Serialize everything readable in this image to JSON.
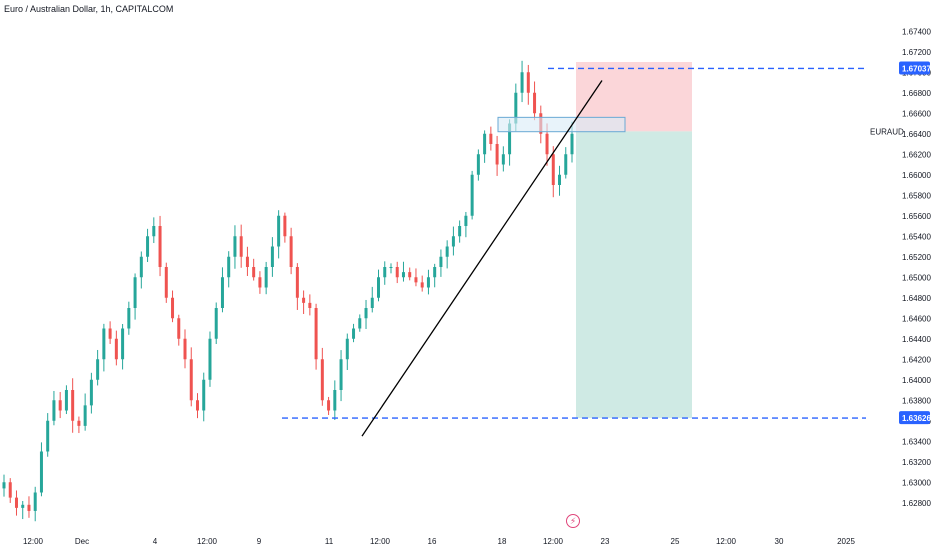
{
  "header": {
    "title": "Euro / Australian Dollar, 1h, CAPITALCOM"
  },
  "symbol": "EURAUD",
  "icons": {
    "logo": "tradingview-lightning-icon"
  },
  "colors": {
    "up": "#26a69a",
    "down": "#ef5350",
    "level": "#2962ff",
    "target_zone": "#cfeae4",
    "stop_zone": "#fbd6d9",
    "box_fill": "#d8ebf6",
    "box_stroke": "#6aa9d4",
    "trendline": "#000000"
  },
  "chart_data": {
    "type": "candlestick",
    "title": "Euro / Australian Dollar, 1h, CAPITALCOM",
    "y_axis": {
      "ylim": [
        1.627,
        1.675
      ],
      "ticks": [
        "1.67400",
        "1.67200",
        "1.67000",
        "1.66800",
        "1.66600",
        "1.66400",
        "1.66200",
        "1.66000",
        "1.65800",
        "1.65600",
        "1.65400",
        "1.65200",
        "1.65000",
        "1.64800",
        "1.64600",
        "1.64400",
        "1.64200",
        "1.64000",
        "1.63800",
        "1.63600",
        "1.63400",
        "1.63200",
        "1.63000",
        "1.62800"
      ],
      "side": "right"
    },
    "x_axis": {
      "ticks": [
        "12:00",
        "Dec",
        "4",
        "12:00",
        "9",
        "11",
        "12:00",
        "16",
        "18",
        "12:00",
        "23",
        "25",
        "12:00",
        "30",
        "2025"
      ]
    },
    "approx_closes": [
      1.63,
      1.6285,
      1.6275,
      1.6278,
      1.6272,
      1.629,
      1.633,
      1.636,
      1.638,
      1.637,
      1.639,
      1.636,
      1.6355,
      1.6375,
      1.64,
      1.642,
      1.645,
      1.644,
      1.642,
      1.645,
      1.647,
      1.65,
      1.652,
      1.654,
      1.655,
      1.651,
      1.648,
      1.646,
      1.644,
      1.642,
      1.638,
      1.637,
      1.64,
      1.644,
      1.647,
      1.65,
      1.652,
      1.654,
      1.652,
      1.651,
      1.65,
      1.649,
      1.651,
      1.653,
      1.656,
      1.654,
      1.651,
      1.648,
      1.6475,
      1.647,
      1.642,
      1.638,
      1.637,
      1.639,
      1.642,
      1.644,
      1.645,
      1.646,
      1.647,
      1.648,
      1.65,
      1.651,
      1.651,
      1.65,
      1.6505,
      1.65,
      1.6495,
      1.649,
      1.65,
      1.651,
      1.652,
      1.653,
      1.654,
      1.655,
      1.656,
      1.66,
      1.662,
      1.664,
      1.663,
      1.661,
      1.662,
      1.665,
      1.668,
      1.67,
      1.668,
      1.666,
      1.664,
      1.662,
      1.659,
      1.66,
      1.662,
      1.664
    ],
    "levels": [
      {
        "label": "1.67037",
        "value": 1.67037,
        "style": "dashed"
      },
      {
        "label": "1.63626",
        "value": 1.63626,
        "style": "dashed"
      }
    ],
    "last_price": {
      "label": "1.66423",
      "value": 1.66423
    },
    "trendline": {
      "from": {
        "x": "12:00 (11)",
        "y": 1.6345
      },
      "to": {
        "x": "23",
        "y": 1.6692
      }
    },
    "zones": {
      "stop": {
        "top": 1.671,
        "bottom": 1.66423
      },
      "target": {
        "top": 1.66423,
        "bottom": 1.63626
      }
    },
    "highlight_box": {
      "top": 1.6656,
      "bottom": 1.6642
    },
    "grid": false,
    "legend": "none"
  }
}
